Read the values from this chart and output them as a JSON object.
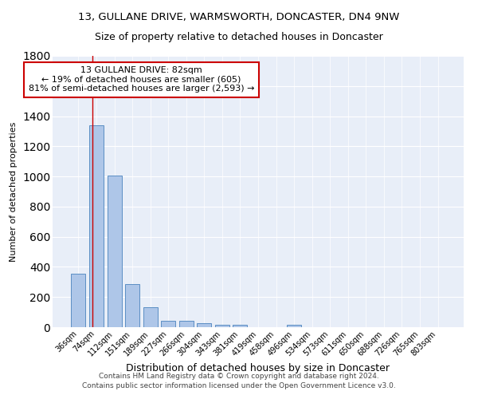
{
  "title": "13, GULLANE DRIVE, WARMSWORTH, DONCASTER, DN4 9NW",
  "subtitle": "Size of property relative to detached houses in Doncaster",
  "xlabel": "Distribution of detached houses by size in Doncaster",
  "ylabel": "Number of detached properties",
  "categories": [
    "36sqm",
    "74sqm",
    "112sqm",
    "151sqm",
    "189sqm",
    "227sqm",
    "266sqm",
    "304sqm",
    "343sqm",
    "381sqm",
    "419sqm",
    "458sqm",
    "496sqm",
    "534sqm",
    "573sqm",
    "611sqm",
    "650sqm",
    "688sqm",
    "726sqm",
    "765sqm",
    "803sqm"
  ],
  "values": [
    355,
    1340,
    1005,
    285,
    130,
    43,
    43,
    28,
    18,
    15,
    0,
    0,
    15,
    0,
    0,
    0,
    0,
    0,
    0,
    0,
    0
  ],
  "bar_color": "#aec6e8",
  "bar_edge_color": "#5b8ec4",
  "annotation_text": "13 GULLANE DRIVE: 82sqm\n← 19% of detached houses are smaller (605)\n81% of semi-detached houses are larger (2,593) →",
  "annotation_box_color": "#ffffff",
  "annotation_box_edge_color": "#cc0000",
  "ylim": [
    0,
    1800
  ],
  "yticks": [
    0,
    200,
    400,
    600,
    800,
    1000,
    1200,
    1400,
    1600,
    1800
  ],
  "background_color": "#e8eef8",
  "grid_color": "#ffffff",
  "footer": "Contains HM Land Registry data © Crown copyright and database right 2024.\nContains public sector information licensed under the Open Government Licence v3.0.",
  "title_fontsize": 9.5,
  "subtitle_fontsize": 9,
  "xlabel_fontsize": 9,
  "ylabel_fontsize": 8,
  "tick_fontsize": 7,
  "footer_fontsize": 6.5,
  "annotation_fontsize": 8
}
